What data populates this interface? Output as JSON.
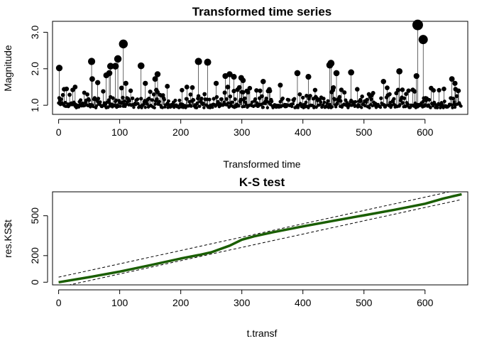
{
  "chart_data": [
    {
      "type": "scatter",
      "title": "Transformed time series",
      "xlabel": "Transformed time",
      "ylabel": "Magnitude",
      "xlim": [
        -10,
        670
      ],
      "ylim": [
        0.75,
        3.3
      ],
      "xticks": [
        0,
        100,
        200,
        300,
        400,
        500,
        600
      ],
      "xtick_labels": [
        "0",
        "100",
        "200",
        "300",
        "400",
        "500",
        "600"
      ],
      "yticks": [
        1.0,
        2.0,
        3.0
      ],
      "ytick_labels": [
        "1.0",
        "2.0",
        "3.0"
      ],
      "baseline": 1.0,
      "point_color": "#000000",
      "n_points": 660,
      "highlighted_points": [
        {
          "x": 1,
          "y": 2.02
        },
        {
          "x": 7,
          "y": 1.28
        },
        {
          "x": 23,
          "y": 1.42
        },
        {
          "x": 27,
          "y": 1.5
        },
        {
          "x": 54,
          "y": 2.2
        },
        {
          "x": 55,
          "y": 1.72
        },
        {
          "x": 64,
          "y": 1.62
        },
        {
          "x": 78,
          "y": 1.82
        },
        {
          "x": 83,
          "y": 1.88
        },
        {
          "x": 85,
          "y": 2.07
        },
        {
          "x": 93,
          "y": 2.07
        },
        {
          "x": 97,
          "y": 2.27
        },
        {
          "x": 106,
          "y": 2.68
        },
        {
          "x": 110,
          "y": 1.6
        },
        {
          "x": 135,
          "y": 2.08
        },
        {
          "x": 142,
          "y": 1.6
        },
        {
          "x": 158,
          "y": 1.72
        },
        {
          "x": 162,
          "y": 1.85
        },
        {
          "x": 178,
          "y": 1.52
        },
        {
          "x": 229,
          "y": 2.2
        },
        {
          "x": 244,
          "y": 2.18
        },
        {
          "x": 273,
          "y": 1.8
        },
        {
          "x": 280,
          "y": 1.85
        },
        {
          "x": 287,
          "y": 1.78
        },
        {
          "x": 299,
          "y": 1.75
        },
        {
          "x": 302,
          "y": 1.68
        },
        {
          "x": 335,
          "y": 1.65
        },
        {
          "x": 391,
          "y": 1.88
        },
        {
          "x": 409,
          "y": 1.78
        },
        {
          "x": 444,
          "y": 2.1
        },
        {
          "x": 446,
          "y": 2.15
        },
        {
          "x": 455,
          "y": 1.88
        },
        {
          "x": 479,
          "y": 1.9
        },
        {
          "x": 558,
          "y": 1.93
        },
        {
          "x": 586,
          "y": 1.8
        },
        {
          "x": 588,
          "y": 3.2
        },
        {
          "x": 597,
          "y": 2.8
        },
        {
          "x": 644,
          "y": 1.72
        },
        {
          "x": 649,
          "y": 1.6
        },
        {
          "x": 532,
          "y": 1.65
        },
        {
          "x": 363,
          "y": 1.55
        },
        {
          "x": 258,
          "y": 1.6
        },
        {
          "x": 210,
          "y": 1.5
        }
      ]
    },
    {
      "type": "line",
      "title": "K-S test",
      "xlabel": "t.transf",
      "ylabel": "res.KS$t",
      "xlim": [
        -10,
        670
      ],
      "ylim": [
        -20,
        680
      ],
      "xticks": [
        0,
        100,
        200,
        300,
        400,
        500,
        600
      ],
      "xtick_labels": [
        "0",
        "100",
        "200",
        "300",
        "400",
        "500",
        "600"
      ],
      "yticks": [
        0,
        200,
        500
      ],
      "ytick_labels": [
        "0",
        "200",
        "500"
      ],
      "series": [
        {
          "color": "#1a5e00",
          "x": [
            0,
            50,
            100,
            150,
            200,
            230,
            250,
            280,
            300,
            320,
            350,
            400,
            450,
            500,
            550,
            600,
            630,
            660
          ],
          "y": [
            0,
            38,
            80,
            128,
            178,
            205,
            225,
            275,
            320,
            345,
            375,
            420,
            462,
            503,
            545,
            590,
            630,
            662
          ]
        }
      ],
      "confidence_bands": [
        {
          "color": "#000000",
          "style": "dashed",
          "x": [
            0,
            660
          ],
          "y": [
            38,
            700
          ]
        },
        {
          "color": "#000000",
          "style": "dashed",
          "x": [
            0,
            660
          ],
          "y": [
            -38,
            622
          ]
        }
      ]
    }
  ]
}
